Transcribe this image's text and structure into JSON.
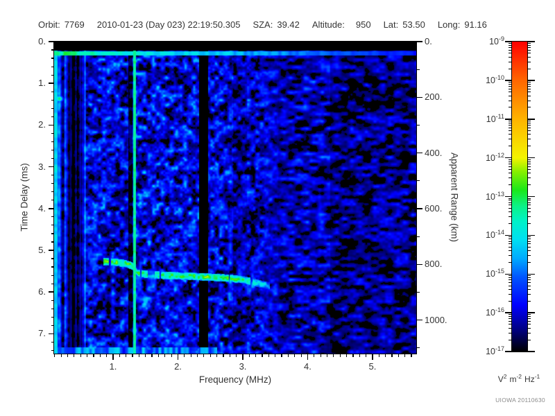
{
  "header": {
    "orbit_label": "Orbit:",
    "orbit": "7769",
    "datetime": "2010-01-23 (Day 023) 22:19:50.305",
    "sza_label": "SZA:",
    "sza": "39.42",
    "altitude_label": "Altitude:",
    "altitude": "950",
    "lat_label": "Lat:",
    "lat": "53.50",
    "long_label": "Long:",
    "long": "91.16"
  },
  "footer": {
    "credit": "UIOWA 20110630"
  },
  "chart_data": {
    "type": "heatmap",
    "subtype": "radar-sounder-ionogram-spectrogram",
    "xlabel": "Frequency (MHz)",
    "ylabel_left": "Time Delay (ms)",
    "ylabel_right": "Apparent Range (km)",
    "xlim": [
      0.091,
      5.674
    ],
    "ylim_ms": [
      0,
      7.475
    ],
    "x_major_ticks": [
      1,
      2,
      3,
      4,
      5
    ],
    "x_tick_labels": [
      "1.",
      "2.",
      "3.",
      "4.",
      "5."
    ],
    "x_minor_step": 0.1,
    "y_major_ticks_ms": [
      0,
      1,
      2,
      3,
      4,
      5,
      6,
      7
    ],
    "y_tick_labels": [
      "0.",
      "1.",
      "2.",
      "3.",
      "4.",
      "5.",
      "6.",
      "7."
    ],
    "y_minor_step_ms": 0.2,
    "range_major_ticks_km": [
      0,
      200,
      400,
      600,
      800,
      1000
    ],
    "range_tick_labels": [
      "0.",
      "200.",
      "400.",
      "600.",
      "800.",
      "1000."
    ],
    "range_minor_step_km": 100,
    "km_per_ms": 149.9,
    "colorbar_base": "10",
    "colorbar_exponents": [
      -9,
      -10,
      -11,
      -12,
      -13,
      -14,
      -15,
      -16,
      -17
    ],
    "colorbar_unit": {
      "v": "V",
      "v_sup": "2",
      "m": "m",
      "m_sup": "-2",
      "hz": "Hz",
      "hz_sup": "-1"
    },
    "palette": [
      [
        0.0,
        "#000000"
      ],
      [
        0.03,
        "#000038"
      ],
      [
        0.07,
        "#000080"
      ],
      [
        0.15,
        "#0000ff"
      ],
      [
        0.24,
        "#0055ff"
      ],
      [
        0.3,
        "#00aaff"
      ],
      [
        0.36,
        "#00dff2"
      ],
      [
        0.42,
        "#00f2c8"
      ],
      [
        0.47,
        "#0cf286"
      ],
      [
        0.52,
        "#1ae81a"
      ],
      [
        0.58,
        "#86f000"
      ],
      [
        0.625,
        "#f4f400"
      ],
      [
        0.75,
        "#ffb300"
      ],
      [
        0.875,
        "#ff6600"
      ],
      [
        1.0,
        "#ff0000"
      ]
    ],
    "render": {
      "seed": 20110630,
      "black_floor": 0.045,
      "top_blank_ms": 0.22,
      "regions": [
        {
          "f0": 0.091,
          "f1": 0.58,
          "amp": 0.34,
          "stripes": true
        },
        {
          "f0": 0.58,
          "f1": 1.35,
          "amp": 0.295
        },
        {
          "f0": 1.35,
          "f1": 2.33,
          "amp": 0.315
        },
        {
          "f0": 2.33,
          "f1": 2.47,
          "amp": 0.3
        },
        {
          "f0": 2.47,
          "f1": 2.85,
          "amp": 0.29
        },
        {
          "f0": 2.85,
          "f1": 3.06,
          "amp": 0.22
        },
        {
          "f0": 3.06,
          "f1": 3.55,
          "amp": 0.27
        },
        {
          "f0": 3.55,
          "f1": 4.35,
          "amp": 0.24
        },
        {
          "f0": 4.35,
          "f1": 5.675,
          "amp": 0.185
        }
      ],
      "dark_bands": [
        {
          "f0": 0.32,
          "f1": 0.42,
          "m": 0.3
        },
        {
          "f0": 0.42,
          "f1": 0.52,
          "m": 0.5
        },
        {
          "f0": 1.24,
          "f1": 1.3,
          "m": 0.3
        },
        {
          "f0": 2.33,
          "f1": 2.47,
          "m": 0.08
        }
      ],
      "green_line": {
        "f0": 1.305,
        "f1": 1.352,
        "level": 0.4,
        "jitter": 0.1
      },
      "left_edge_boost": {
        "f_max": 0.145,
        "level": 0.3,
        "jitter": 0.1
      },
      "surface_echo": {
        "t_ms": 0.285,
        "half_width_ms": 0.055,
        "level_at_0mhz": 0.465,
        "slope_per_mhz": -0.052,
        "min_level": 0.17
      },
      "blob": {
        "f_mhz": 0.17,
        "t_ms": 1.37,
        "sigma_f": 0.07,
        "sigma_t": 0.08,
        "level": 0.44
      },
      "bottom_boost": {
        "t_min_ms": 7.33,
        "f_max_mhz": 2.6,
        "level": 0.25
      },
      "trace": {
        "points": [
          [
            0.85,
            5.27
          ],
          [
            1.0,
            5.28
          ],
          [
            1.2,
            5.32
          ],
          [
            1.3,
            5.38
          ],
          [
            1.38,
            5.55
          ],
          [
            1.6,
            5.59
          ],
          [
            1.95,
            5.61
          ],
          [
            2.3,
            5.63
          ],
          [
            2.7,
            5.66
          ],
          [
            3.0,
            5.7
          ],
          [
            3.2,
            5.78
          ],
          [
            3.42,
            5.86
          ]
        ],
        "half_width_ms": 0.09,
        "level": 0.5,
        "fade_start_mhz": 2.95,
        "end_level": 0.3,
        "gap_threshold": 0.24
      }
    }
  }
}
